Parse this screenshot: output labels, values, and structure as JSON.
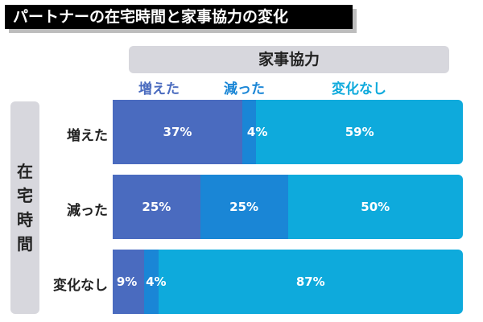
{
  "title": "パートナーの在宅時間と家事協力の変化",
  "column_header": "家事協力",
  "row_header_chars": [
    "在",
    "宅",
    "時",
    "間"
  ],
  "colors": {
    "increased": "#4a6bbf",
    "decreased": "#1a86d6",
    "unchanged": "#0eaadc",
    "title_bg": "#000000",
    "header_bg": "#d7d7dd"
  },
  "chart_data": {
    "type": "bar",
    "stacked": true,
    "orientation": "horizontal",
    "categories": [
      "増えた",
      "減った",
      "変化なし"
    ],
    "series": [
      {
        "name": "増えた",
        "values": [
          37,
          25,
          9
        ]
      },
      {
        "name": "減った",
        "values": [
          4,
          25,
          4
        ]
      },
      {
        "name": "変化なし",
        "values": [
          59,
          50,
          87
        ]
      }
    ],
    "value_labels": [
      [
        "37%",
        "4%",
        "59%"
      ],
      [
        "25%",
        "25%",
        "50%"
      ],
      [
        "9%",
        "4%",
        "87%"
      ]
    ]
  }
}
